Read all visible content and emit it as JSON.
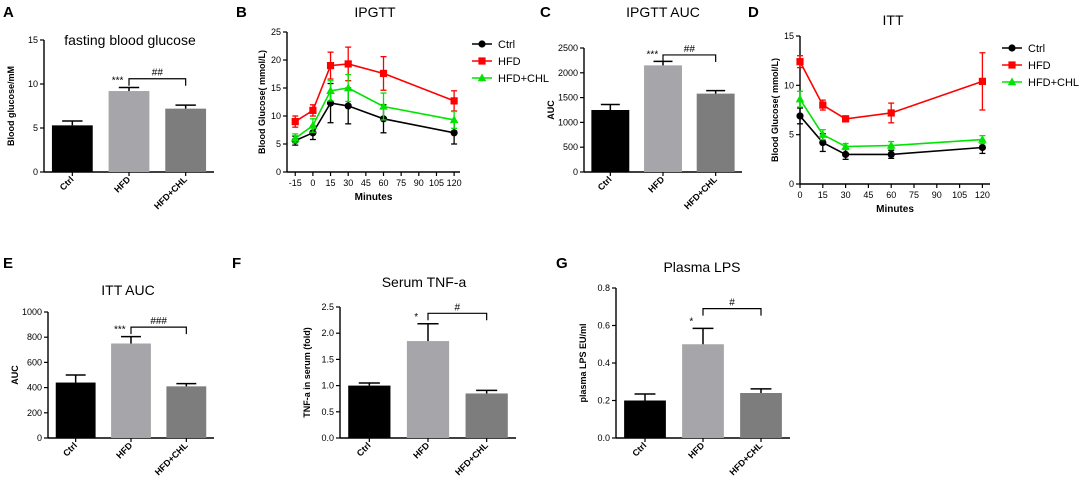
{
  "chart_data": [
    {
      "panel": "A",
      "type": "bar",
      "title": "fasting blood glucose",
      "ylabel": "Blood glucose/mM",
      "xlabel": "",
      "ylim": [
        0,
        15
      ],
      "yticks": [
        0,
        5,
        10,
        15
      ],
      "ytick_labels": [
        "0",
        "5",
        "10",
        "15"
      ],
      "categories": [
        "Ctrl",
        "HFD",
        "HFD+CHL"
      ],
      "values": [
        5.3,
        9.2,
        7.2
      ],
      "errors": [
        0.5,
        0.4,
        0.4
      ],
      "colors": [
        "#000000",
        "#a6a6aa",
        "#7d7d7d"
      ],
      "annotations": [
        {
          "text": "***",
          "category": 1
        }
      ],
      "brackets": [
        {
          "from": 1,
          "to": 2,
          "text": "##",
          "y": 10.6
        }
      ]
    },
    {
      "panel": "B",
      "type": "line",
      "title": "IPGTT",
      "ylabel": "Blood Glucose( mmol/L)",
      "xlabel": "Minutes",
      "xlim": [
        -22,
        125
      ],
      "ylim": [
        0,
        25
      ],
      "xticks": [
        -15,
        0,
        15,
        30,
        45,
        60,
        75,
        90,
        105,
        120
      ],
      "xtick_labels": [
        "-15",
        "0",
        "15",
        "30",
        "45",
        "60",
        "75",
        "90",
        "105",
        "120"
      ],
      "yticks": [
        0,
        5,
        10,
        15,
        20,
        25
      ],
      "ytick_labels": [
        "0",
        "5",
        "10",
        "15",
        "20",
        "25"
      ],
      "x": [
        -15,
        0,
        15,
        30,
        60,
        120
      ],
      "series": [
        {
          "name": "Ctrl",
          "color": "#000000",
          "marker": "circle",
          "values": [
            5.6,
            7.0,
            12.3,
            11.8,
            9.5,
            7.0
          ],
          "errors": [
            0.8,
            1.2,
            3.5,
            3.2,
            2.5,
            2.0
          ]
        },
        {
          "name": "HFD",
          "color": "#ff0000",
          "marker": "square",
          "values": [
            9.0,
            11.0,
            19.0,
            19.3,
            17.6,
            12.7
          ],
          "errors": [
            1.0,
            1.0,
            2.4,
            3.0,
            3.0,
            1.8
          ]
        },
        {
          "name": "HFD+CHL",
          "color": "#00e400",
          "marker": "triangle",
          "values": [
            6.0,
            8.3,
            14.5,
            15.0,
            11.7,
            9.3
          ],
          "errors": [
            0.8,
            1.2,
            1.8,
            2.4,
            2.4,
            1.5
          ]
        }
      ]
    },
    {
      "panel": "C",
      "type": "bar",
      "title": "IPGTT AUC",
      "ylabel": "AUC",
      "xlabel": "",
      "ylim": [
        0,
        2500
      ],
      "yticks": [
        0,
        500,
        1000,
        1500,
        2000,
        2500
      ],
      "ytick_labels": [
        "0",
        "500",
        "1000",
        "1500",
        "2000",
        "2500"
      ],
      "categories": [
        "Ctrl",
        "HFD",
        "HFD+CHL"
      ],
      "values": [
        1250,
        2150,
        1580
      ],
      "errors": [
        110,
        80,
        60
      ],
      "colors": [
        "#000000",
        "#a6a6aa",
        "#7d7d7d"
      ],
      "annotations": [
        {
          "text": "***",
          "category": 1
        }
      ],
      "brackets": [
        {
          "from": 1,
          "to": 2,
          "text": "##",
          "y": 2360
        }
      ]
    },
    {
      "panel": "D",
      "type": "line",
      "title": "ITT",
      "ylabel": "Blood Glucose( mmol/L)",
      "xlabel": "Minutes",
      "xlim": [
        0,
        125
      ],
      "ylim": [
        0,
        15
      ],
      "xticks": [
        0,
        15,
        30,
        45,
        60,
        75,
        90,
        105,
        120
      ],
      "xtick_labels": [
        "0",
        "15",
        "30",
        "45",
        "60",
        "75",
        "90",
        "105",
        "120"
      ],
      "yticks": [
        0,
        5,
        10,
        15
      ],
      "ytick_labels": [
        "0",
        "5",
        "10",
        "15"
      ],
      "x": [
        0,
        15,
        30,
        60,
        120
      ],
      "series": [
        {
          "name": "Ctrl",
          "color": "#000000",
          "marker": "circle",
          "values": [
            6.9,
            4.2,
            3.0,
            3.0,
            3.7
          ],
          "errors": [
            0.8,
            0.9,
            0.5,
            0.4,
            0.6
          ]
        },
        {
          "name": "HFD",
          "color": "#ff0000",
          "marker": "square",
          "values": [
            12.4,
            8.0,
            6.6,
            7.2,
            10.4
          ],
          "errors": [
            0.6,
            0.5,
            0.3,
            1.0,
            2.9
          ]
        },
        {
          "name": "HFD+CHL",
          "color": "#00e400",
          "marker": "triangle",
          "values": [
            8.6,
            5.0,
            3.8,
            3.9,
            4.5
          ],
          "errors": [
            0.8,
            0.5,
            0.3,
            0.4,
            0.4
          ]
        }
      ]
    },
    {
      "panel": "E",
      "type": "bar",
      "title": "ITT AUC",
      "ylabel": "AUC",
      "xlabel": "",
      "ylim": [
        0,
        1000
      ],
      "yticks": [
        0,
        200,
        400,
        600,
        800,
        1000
      ],
      "ytick_labels": [
        "0",
        "200",
        "400",
        "600",
        "800",
        "1000"
      ],
      "categories": [
        "Ctrl",
        "HFD",
        "HFD+CHL"
      ],
      "values": [
        440,
        750,
        410
      ],
      "errors": [
        60,
        55,
        22
      ],
      "colors": [
        "#000000",
        "#a6a6aa",
        "#7d7d7d"
      ],
      "annotations": [
        {
          "text": "***",
          "category": 1
        }
      ],
      "brackets": [
        {
          "from": 1,
          "to": 2,
          "text": "###",
          "y": 880
        }
      ]
    },
    {
      "panel": "F",
      "type": "bar",
      "title": "Serum TNF-a",
      "ylabel": "TNF-a in serum (fold)",
      "xlabel": "",
      "ylim": [
        0,
        2.5
      ],
      "yticks": [
        0,
        0.5,
        1.0,
        1.5,
        2.0,
        2.5
      ],
      "ytick_labels": [
        "0.0",
        "0.5",
        "1.0",
        "1.5",
        "2.0",
        "2.5"
      ],
      "categories": [
        "Ctrl",
        "HFD",
        "HFD+CHL"
      ],
      "values": [
        1.0,
        1.85,
        0.85
      ],
      "errors": [
        0.05,
        0.33,
        0.06
      ],
      "colors": [
        "#000000",
        "#a6a6aa",
        "#7d7d7d"
      ],
      "annotations": [
        {
          "text": "*",
          "category": 1
        }
      ],
      "brackets": [
        {
          "from": 1,
          "to": 2,
          "text": "#",
          "y": 2.38
        }
      ]
    },
    {
      "panel": "G",
      "type": "bar",
      "title": "Plasma LPS",
      "ylabel": "plasma LPS EU/ml",
      "xlabel": "",
      "ylim": [
        0,
        0.8
      ],
      "yticks": [
        0,
        0.2,
        0.4,
        0.6,
        0.8
      ],
      "ytick_labels": [
        "0.0",
        "0.2",
        "0.4",
        "0.6",
        "0.8"
      ],
      "categories": [
        "Ctrl",
        "HFD",
        "HFD+CHL"
      ],
      "values": [
        0.2,
        0.5,
        0.24
      ],
      "errors": [
        0.035,
        0.085,
        0.022
      ],
      "colors": [
        "#000000",
        "#a6a6aa",
        "#7d7d7d"
      ],
      "annotations": [
        {
          "text": "*",
          "category": 1
        }
      ],
      "brackets": [
        {
          "from": 1,
          "to": 2,
          "text": "#",
          "y": 0.69
        }
      ]
    }
  ]
}
